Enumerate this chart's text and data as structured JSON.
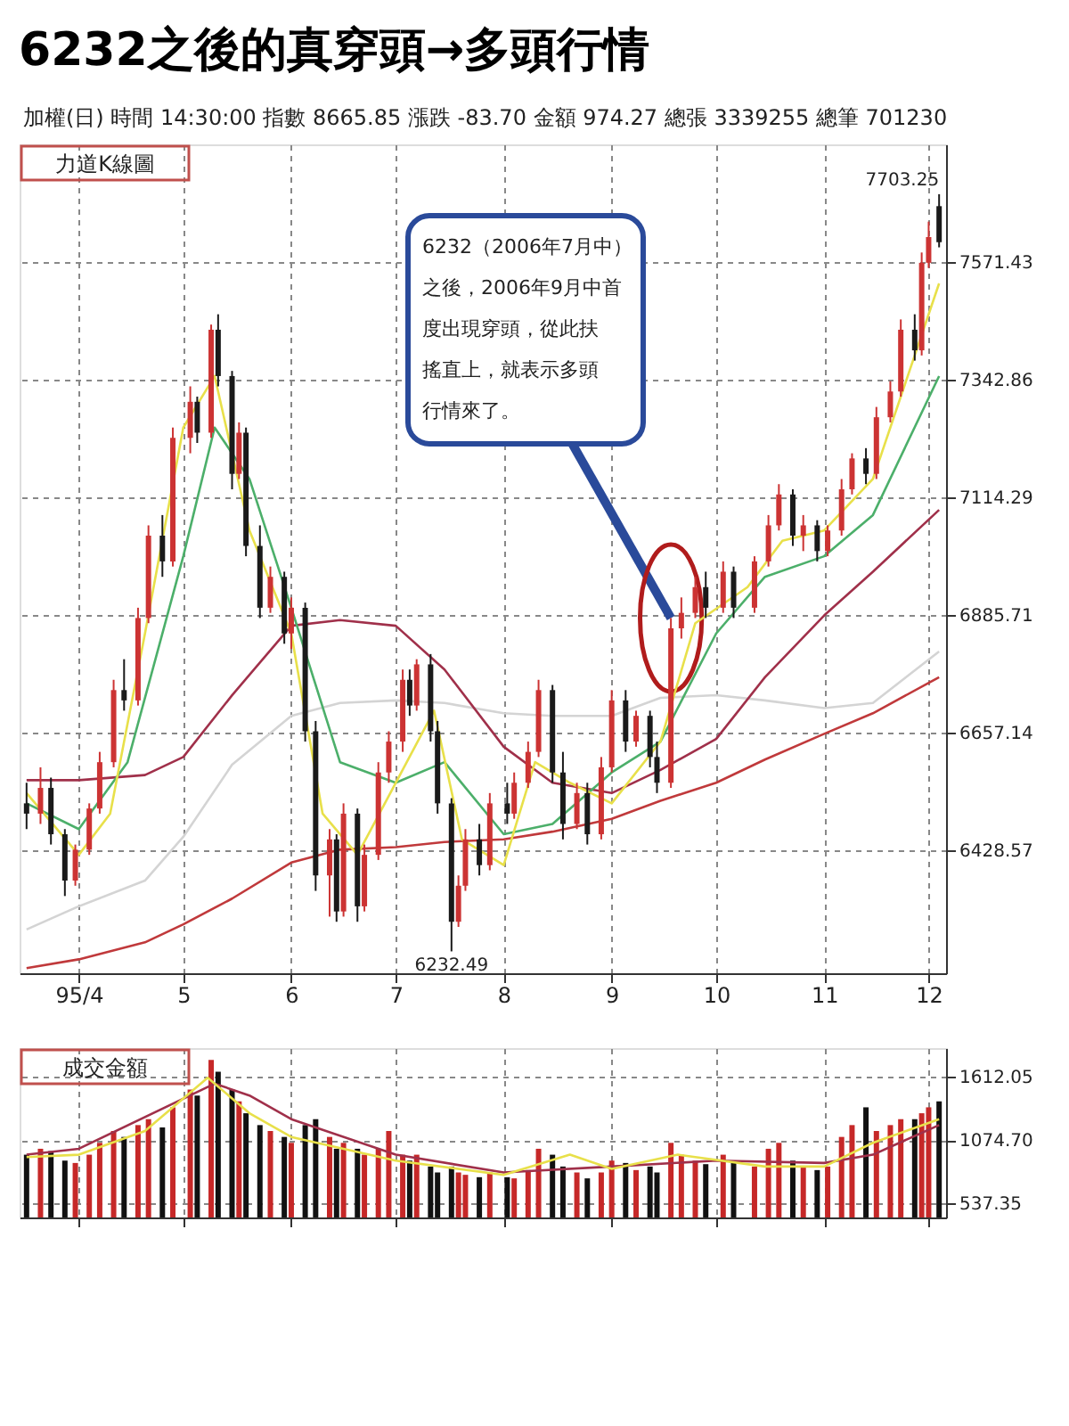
{
  "chart_data": [
    {
      "type": "candlestick",
      "title": "6232之後的真穿頭→多頭行情",
      "annotations": [
        "加權(日)  時間 14:30:00   指數 8665.85   漲跌 -83.70   金額 974.27   總張 3339255   總筆 701230",
        "力道K線圖",
        {
          "text": "6232（2006年7月中）之後，2006年9月中首度出現穿頭，從此扶搖直上，就表示多頭行情來了。",
          "x": "2006-09-18",
          "y": 6880
        },
        {
          "text": "7703.25",
          "x": "2006-12-04",
          "y": 7703.25
        },
        {
          "text": "6232.49",
          "x": "2006-07-17",
          "y": 6232.49
        }
      ],
      "x": [
        "2006-03-17",
        "2006-03-21",
        "2006-03-24",
        "2006-03-28",
        "2006-03-31",
        "2006-04-04",
        "2006-04-07",
        "2006-04-11",
        "2006-04-14",
        "2006-04-18",
        "2006-04-21",
        "2006-04-25",
        "2006-04-28",
        "2006-05-03",
        "2006-05-05",
        "2006-05-09",
        "2006-05-11",
        "2006-05-15",
        "2006-05-17",
        "2006-05-19",
        "2006-05-23",
        "2006-05-26",
        "2006-05-30",
        "2006-06-01",
        "2006-06-05",
        "2006-06-08",
        "2006-06-12",
        "2006-06-14",
        "2006-06-16",
        "2006-06-20",
        "2006-06-22",
        "2006-06-26",
        "2006-06-29",
        "2006-07-03",
        "2006-07-05",
        "2006-07-07",
        "2006-07-11",
        "2006-07-13",
        "2006-07-17",
        "2006-07-19",
        "2006-07-21",
        "2006-07-25",
        "2006-07-28",
        "2006-08-02",
        "2006-08-04",
        "2006-08-08",
        "2006-08-11",
        "2006-08-15",
        "2006-08-18",
        "2006-08-22",
        "2006-08-25",
        "2006-08-29",
        "2006-09-01",
        "2006-09-05",
        "2006-09-08",
        "2006-09-12",
        "2006-09-14",
        "2006-09-18",
        "2006-09-21",
        "2006-09-25",
        "2006-09-28",
        "2006-10-03",
        "2006-10-06",
        "2006-10-12",
        "2006-10-16",
        "2006-10-19",
        "2006-10-23",
        "2006-10-26",
        "2006-10-30",
        "2006-11-02",
        "2006-11-06",
        "2006-11-09",
        "2006-11-13",
        "2006-11-16",
        "2006-11-20",
        "2006-11-23",
        "2006-11-27",
        "2006-11-29",
        "2006-12-01",
        "2006-12-04"
      ],
      "ohlc": [
        [
          6520,
          6560,
          6470,
          6500
        ],
        [
          6500,
          6590,
          6480,
          6550
        ],
        [
          6550,
          6570,
          6440,
          6460
        ],
        [
          6460,
          6470,
          6340,
          6370
        ],
        [
          6370,
          6440,
          6360,
          6430
        ],
        [
          6430,
          6520,
          6420,
          6510
        ],
        [
          6510,
          6620,
          6500,
          6600
        ],
        [
          6600,
          6760,
          6590,
          6740
        ],
        [
          6740,
          6800,
          6700,
          6720
        ],
        [
          6720,
          6900,
          6710,
          6880
        ],
        [
          6880,
          7060,
          6870,
          7040
        ],
        [
          7040,
          7080,
          6960,
          6990
        ],
        [
          6990,
          7250,
          6980,
          7230
        ],
        [
          7230,
          7330,
          7200,
          7300
        ],
        [
          7300,
          7310,
          7220,
          7240
        ],
        [
          7240,
          7450,
          7230,
          7440
        ],
        [
          7440,
          7470,
          7330,
          7350
        ],
        [
          7350,
          7360,
          7130,
          7160
        ],
        [
          7160,
          7260,
          7150,
          7240
        ],
        [
          7240,
          7250,
          7000,
          7020
        ],
        [
          7020,
          7060,
          6880,
          6900
        ],
        [
          6900,
          6980,
          6890,
          6960
        ],
        [
          6960,
          6970,
          6830,
          6850
        ],
        [
          6850,
          6920,
          6820,
          6900
        ],
        [
          6900,
          6910,
          6640,
          6660
        ],
        [
          6660,
          6680,
          6350,
          6380
        ],
        [
          6380,
          6470,
          6300,
          6450
        ],
        [
          6450,
          6460,
          6290,
          6310
        ],
        [
          6310,
          6520,
          6300,
          6500
        ],
        [
          6500,
          6510,
          6290,
          6320
        ],
        [
          6320,
          6440,
          6310,
          6420
        ],
        [
          6420,
          6600,
          6410,
          6580
        ],
        [
          6580,
          6660,
          6560,
          6640
        ],
        [
          6640,
          6780,
          6620,
          6760
        ],
        [
          6760,
          6780,
          6690,
          6710
        ],
        [
          6710,
          6800,
          6700,
          6790
        ],
        [
          6790,
          6810,
          6640,
          6660
        ],
        [
          6660,
          6680,
          6500,
          6520
        ],
        [
          6520,
          6530,
          6232.49,
          6290
        ],
        [
          6290,
          6380,
          6280,
          6360
        ],
        [
          6360,
          6470,
          6350,
          6450
        ],
        [
          6450,
          6480,
          6380,
          6400
        ],
        [
          6400,
          6540,
          6390,
          6520
        ],
        [
          6520,
          6560,
          6480,
          6500
        ],
        [
          6500,
          6580,
          6490,
          6560
        ],
        [
          6560,
          6640,
          6550,
          6620
        ],
        [
          6620,
          6760,
          6610,
          6740
        ],
        [
          6740,
          6750,
          6560,
          6580
        ],
        [
          6580,
          6620,
          6450,
          6480
        ],
        [
          6480,
          6560,
          6470,
          6540
        ],
        [
          6540,
          6560,
          6440,
          6460
        ],
        [
          6460,
          6610,
          6450,
          6590
        ],
        [
          6590,
          6740,
          6580,
          6720
        ],
        [
          6720,
          6740,
          6620,
          6640
        ],
        [
          6640,
          6700,
          6630,
          6690
        ],
        [
          6690,
          6700,
          6590,
          6610
        ],
        [
          6610,
          6640,
          6540,
          6560
        ],
        [
          6560,
          6880,
          6550,
          6860
        ],
        [
          6860,
          6920,
          6840,
          6890
        ],
        [
          6890,
          6960,
          6880,
          6940
        ],
        [
          6940,
          6970,
          6880,
          6900
        ],
        [
          6900,
          6990,
          6890,
          6970
        ],
        [
          6970,
          6980,
          6880,
          6900
        ],
        [
          6900,
          7000,
          6890,
          6990
        ],
        [
          6990,
          7080,
          6980,
          7060
        ],
        [
          7060,
          7140,
          7050,
          7120
        ],
        [
          7120,
          7130,
          7020,
          7040
        ],
        [
          7040,
          7080,
          7010,
          7060
        ],
        [
          7060,
          7070,
          6990,
          7010
        ],
        [
          7010,
          7060,
          7000,
          7050
        ],
        [
          7050,
          7150,
          7040,
          7130
        ],
        [
          7130,
          7200,
          7120,
          7190
        ],
        [
          7190,
          7210,
          7140,
          7160
        ],
        [
          7160,
          7290,
          7150,
          7270
        ],
        [
          7270,
          7340,
          7260,
          7320
        ],
        [
          7320,
          7460,
          7310,
          7440
        ],
        [
          7440,
          7470,
          7380,
          7400
        ],
        [
          7400,
          7590,
          7390,
          7570
        ],
        [
          7570,
          7650,
          7560,
          7620
        ],
        [
          7680,
          7703.25,
          7600,
          7610
        ]
      ],
      "colors": [
        "#1a1a1a",
        "#cc3333",
        "#1a1a1a",
        "#1a1a1a",
        "#cc3333",
        "#cc3333",
        "#cc3333",
        "#cc3333",
        "#1a1a1a",
        "#cc3333",
        "#cc3333",
        "#1a1a1a",
        "#cc3333",
        "#cc3333",
        "#1a1a1a",
        "#cc3333",
        "#1a1a1a",
        "#1a1a1a",
        "#cc3333",
        "#1a1a1a",
        "#1a1a1a",
        "#cc3333",
        "#1a1a1a",
        "#cc3333",
        "#1a1a1a",
        "#1a1a1a",
        "#cc3333",
        "#1a1a1a",
        "#cc3333",
        "#1a1a1a",
        "#cc3333",
        "#cc3333",
        "#cc3333",
        "#cc3333",
        "#1a1a1a",
        "#cc3333",
        "#1a1a1a",
        "#1a1a1a",
        "#1a1a1a",
        "#cc3333",
        "#cc3333",
        "#1a1a1a",
        "#cc3333",
        "#1a1a1a",
        "#cc3333",
        "#cc3333",
        "#cc3333",
        "#1a1a1a",
        "#1a1a1a",
        "#cc3333",
        "#1a1a1a",
        "#cc3333",
        "#cc3333",
        "#1a1a1a",
        "#cc3333",
        "#1a1a1a",
        "#1a1a1a",
        "#cc3333",
        "#cc3333",
        "#cc3333",
        "#1a1a1a",
        "#cc3333",
        "#1a1a1a",
        "#cc3333",
        "#cc3333",
        "#cc3333",
        "#1a1a1a",
        "#cc3333",
        "#1a1a1a",
        "#cc3333",
        "#cc3333",
        "#cc3333",
        "#1a1a1a",
        "#cc3333",
        "#cc3333",
        "#cc3333",
        "#1a1a1a",
        "#cc3333",
        "#cc3333",
        "#1a1a1a"
      ],
      "series": [
        {
          "type": "line",
          "color": "#d4d4d4",
          "x": [
            "2006-03-17",
            "2006-04-01",
            "2006-04-20",
            "2006-05-01",
            "2006-05-15",
            "2006-06-01",
            "2006-06-15",
            "2006-07-01",
            "2006-07-15",
            "2006-08-01",
            "2006-08-15",
            "2006-09-01",
            "2006-09-15",
            "2006-10-01",
            "2006-10-15",
            "2006-11-01",
            "2006-11-15",
            "2006-12-04"
          ],
          "values": [
            6275,
            6320,
            6370,
            6455,
            6595,
            6690,
            6715,
            6720,
            6715,
            6695,
            6690,
            6690,
            6725,
            6730,
            6720,
            6705,
            6715,
            6815
          ]
        },
        {
          "type": "line",
          "color": "#c0393b",
          "x": [
            "2006-03-17",
            "2006-04-01",
            "2006-04-20",
            "2006-05-01",
            "2006-05-15",
            "2006-06-01",
            "2006-06-15",
            "2006-07-01",
            "2006-07-15",
            "2006-08-01",
            "2006-08-15",
            "2006-09-01",
            "2006-09-15",
            "2006-10-01",
            "2006-10-15",
            "2006-11-01",
            "2006-11-15",
            "2006-12-04"
          ],
          "values": [
            6200,
            6217,
            6250,
            6285,
            6335,
            6405,
            6430,
            6435,
            6445,
            6450,
            6465,
            6490,
            6525,
            6560,
            6605,
            6655,
            6695,
            6765
          ]
        },
        {
          "type": "line",
          "color": "#a0304a",
          "x": [
            "2006-03-17",
            "2006-04-01",
            "2006-04-20",
            "2006-05-01",
            "2006-05-15",
            "2006-06-01",
            "2006-06-15",
            "2006-07-01",
            "2006-07-15",
            "2006-08-01",
            "2006-08-15",
            "2006-09-01",
            "2006-09-15",
            "2006-10-01",
            "2006-10-15",
            "2006-11-01",
            "2006-11-15",
            "2006-12-04"
          ],
          "values": [
            6565,
            6565,
            6575,
            6610,
            6730,
            6865,
            6876,
            6865,
            6780,
            6630,
            6560,
            6540,
            6585,
            6645,
            6765,
            6885,
            6970,
            7090
          ]
        },
        {
          "type": "line",
          "color": "#4caf6a",
          "x": [
            "2006-03-17",
            "2006-04-01",
            "2006-04-15",
            "2006-05-01",
            "2006-05-10",
            "2006-05-20",
            "2006-06-01",
            "2006-06-15",
            "2006-07-01",
            "2006-07-15",
            "2006-08-01",
            "2006-08-15",
            "2006-09-01",
            "2006-09-15",
            "2006-10-01",
            "2006-10-15",
            "2006-11-01",
            "2006-11-15",
            "2006-12-04"
          ],
          "values": [
            6520,
            6470,
            6600,
            7000,
            7250,
            7150,
            6900,
            6600,
            6560,
            6600,
            6460,
            6480,
            6580,
            6640,
            6850,
            6960,
            7000,
            7080,
            7350
          ]
        },
        {
          "type": "line",
          "color": "#e8e04a",
          "x": [
            "2006-03-17",
            "2006-04-01",
            "2006-04-10",
            "2006-04-20",
            "2006-05-01",
            "2006-05-10",
            "2006-05-20",
            "2006-06-01",
            "2006-06-10",
            "2006-06-20",
            "2006-07-01",
            "2006-07-12",
            "2006-07-20",
            "2006-08-01",
            "2006-08-10",
            "2006-08-20",
            "2006-09-01",
            "2006-09-15",
            "2006-09-25",
            "2006-10-10",
            "2006-10-20",
            "2006-11-01",
            "2006-11-15",
            "2006-11-25",
            "2006-12-04"
          ],
          "values": [
            6540,
            6420,
            6500,
            6850,
            7250,
            7350,
            7050,
            6850,
            6500,
            6420,
            6560,
            6700,
            6450,
            6400,
            6600,
            6560,
            6520,
            6640,
            6870,
            6940,
            7030,
            7050,
            7150,
            7350,
            7530
          ]
        }
      ],
      "xlim": [
        "2006-03-15",
        "2006-12-06"
      ],
      "xticks": [
        {
          "value": "2006-04-01",
          "label": "95/4"
        },
        {
          "value": "2006-05-01",
          "label": "5"
        },
        {
          "value": "2006-06-01",
          "label": "6"
        },
        {
          "value": "2006-07-01",
          "label": "7"
        },
        {
          "value": "2006-08-01",
          "label": "8"
        },
        {
          "value": "2006-09-01",
          "label": "9"
        },
        {
          "value": "2006-10-01",
          "label": "10"
        },
        {
          "value": "2006-11-01",
          "label": "11"
        },
        {
          "value": "2006-12-01",
          "label": "12"
        }
      ],
      "ylim": [
        6190,
        7800
      ],
      "yticks": [
        6428.57,
        6657.14,
        6885.71,
        7114.29,
        7342.86,
        7571.43
      ],
      "grid": true
    },
    {
      "type": "bar",
      "annotations": [
        "成交金額"
      ],
      "x": [
        "2006-03-17",
        "2006-03-21",
        "2006-03-24",
        "2006-03-28",
        "2006-03-31",
        "2006-04-04",
        "2006-04-07",
        "2006-04-11",
        "2006-04-14",
        "2006-04-18",
        "2006-04-21",
        "2006-04-25",
        "2006-04-28",
        "2006-05-03",
        "2006-05-05",
        "2006-05-09",
        "2006-05-11",
        "2006-05-15",
        "2006-05-17",
        "2006-05-19",
        "2006-05-23",
        "2006-05-26",
        "2006-05-30",
        "2006-06-01",
        "2006-06-05",
        "2006-06-08",
        "2006-06-12",
        "2006-06-14",
        "2006-06-16",
        "2006-06-20",
        "2006-06-22",
        "2006-06-26",
        "2006-06-29",
        "2006-07-03",
        "2006-07-05",
        "2006-07-07",
        "2006-07-11",
        "2006-07-13",
        "2006-07-17",
        "2006-07-19",
        "2006-07-21",
        "2006-07-25",
        "2006-07-28",
        "2006-08-02",
        "2006-08-04",
        "2006-08-08",
        "2006-08-11",
        "2006-08-15",
        "2006-08-18",
        "2006-08-22",
        "2006-08-25",
        "2006-08-29",
        "2006-09-01",
        "2006-09-05",
        "2006-09-08",
        "2006-09-12",
        "2006-09-14",
        "2006-09-18",
        "2006-09-21",
        "2006-09-25",
        "2006-09-28",
        "2006-10-03",
        "2006-10-06",
        "2006-10-12",
        "2006-10-16",
        "2006-10-19",
        "2006-10-23",
        "2006-10-26",
        "2006-10-30",
        "2006-11-02",
        "2006-11-06",
        "2006-11-09",
        "2006-11-13",
        "2006-11-16",
        "2006-11-20",
        "2006-11-23",
        "2006-11-27",
        "2006-11-29",
        "2006-12-01",
        "2006-12-04"
      ],
      "values": [
        950,
        1000,
        980,
        900,
        880,
        950,
        1050,
        1150,
        1100,
        1200,
        1250,
        1180,
        1350,
        1500,
        1450,
        1750,
        1650,
        1500,
        1400,
        1300,
        1200,
        1150,
        1100,
        1050,
        1200,
        1250,
        1100,
        1000,
        1050,
        1000,
        950,
        1000,
        1150,
        950,
        900,
        950,
        850,
        800,
        850,
        800,
        780,
        760,
        800,
        760,
        750,
        820,
        1000,
        950,
        850,
        800,
        750,
        800,
        900,
        880,
        820,
        850,
        800,
        1050,
        950,
        900,
        870,
        950,
        880,
        850,
        1000,
        1050,
        900,
        850,
        820,
        850,
        1100,
        1200,
        1350,
        1150,
        1200,
        1250,
        1250,
        1300,
        1350,
        1400
      ],
      "colors": [
        "#111111",
        "#c62828",
        "#111111",
        "#111111",
        "#c62828",
        "#c62828",
        "#c62828",
        "#c62828",
        "#111111",
        "#c62828",
        "#c62828",
        "#111111",
        "#c62828",
        "#c62828",
        "#111111",
        "#c62828",
        "#111111",
        "#111111",
        "#c62828",
        "#111111",
        "#111111",
        "#c62828",
        "#111111",
        "#c62828",
        "#111111",
        "#111111",
        "#c62828",
        "#111111",
        "#c62828",
        "#111111",
        "#c62828",
        "#c62828",
        "#c62828",
        "#c62828",
        "#111111",
        "#c62828",
        "#111111",
        "#111111",
        "#111111",
        "#c62828",
        "#c62828",
        "#111111",
        "#c62828",
        "#111111",
        "#c62828",
        "#c62828",
        "#c62828",
        "#111111",
        "#111111",
        "#c62828",
        "#111111",
        "#c62828",
        "#c62828",
        "#111111",
        "#c62828",
        "#111111",
        "#111111",
        "#c62828",
        "#c62828",
        "#c62828",
        "#111111",
        "#c62828",
        "#111111",
        "#c62828",
        "#c62828",
        "#c62828",
        "#111111",
        "#c62828",
        "#111111",
        "#c62828",
        "#c62828",
        "#c62828",
        "#111111",
        "#c62828",
        "#c62828",
        "#c62828",
        "#111111",
        "#c62828",
        "#c62828",
        "#111111"
      ],
      "series": [
        {
          "type": "line",
          "color": "#a0304a",
          "x": [
            "2006-03-17",
            "2006-04-01",
            "2006-05-10",
            "2006-05-20",
            "2006-06-01",
            "2006-07-01",
            "2006-08-01",
            "2006-09-01",
            "2006-10-01",
            "2006-11-01",
            "2006-11-15",
            "2006-12-04"
          ],
          "values": [
            950,
            1000,
            1550,
            1450,
            1250,
            950,
            800,
            850,
            900,
            880,
            950,
            1200
          ]
        },
        {
          "type": "line",
          "color": "#e8e04a",
          "x": [
            "2006-03-17",
            "2006-04-01",
            "2006-04-20",
            "2006-05-08",
            "2006-05-20",
            "2006-06-01",
            "2006-07-01",
            "2006-08-01",
            "2006-08-20",
            "2006-09-01",
            "2006-09-20",
            "2006-10-15",
            "2006-11-01",
            "2006-11-15",
            "2006-12-04"
          ],
          "values": [
            930,
            950,
            1150,
            1600,
            1300,
            1100,
            900,
            780,
            950,
            830,
            950,
            850,
            850,
            1050,
            1250
          ]
        }
      ],
      "xlim": [
        "2006-03-15",
        "2006-12-06"
      ],
      "xticks": [
        {
          "value": "2006-04-01",
          "label": null
        },
        {
          "value": "2006-05-01",
          "label": null
        },
        {
          "value": "2006-06-01",
          "label": null
        },
        {
          "value": "2006-07-01",
          "label": null
        },
        {
          "value": "2006-08-01",
          "label": null
        },
        {
          "value": "2006-09-01",
          "label": null
        },
        {
          "value": "2006-10-01",
          "label": null
        },
        {
          "value": "2006-11-01",
          "label": null
        },
        {
          "value": "2006-12-01",
          "label": null
        }
      ],
      "ylim": [
        420,
        1850
      ],
      "yticks": [
        537.35,
        {
          "value": 1074.7,
          "label": "1074.70"
        },
        1612.05
      ],
      "grid": true,
      "tick_labels": "y"
    }
  ]
}
